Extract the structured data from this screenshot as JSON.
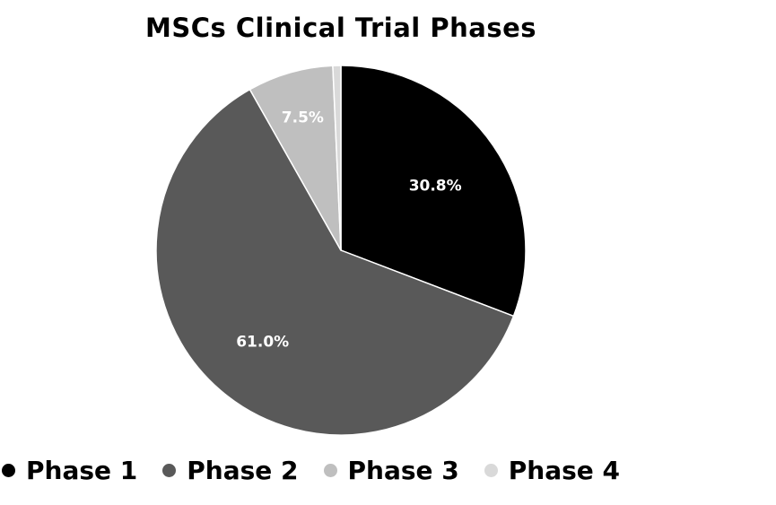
{
  "chart_data": {
    "type": "pie",
    "title": "MSCs Clinical Trial Phases",
    "categories": [
      "Phase 1",
      "Phase 2",
      "Phase 3",
      "Phase 4"
    ],
    "values": [
      30.8,
      61.0,
      7.5,
      0.7
    ],
    "labels": [
      "30.8%",
      "61.0%",
      "7.5%",
      ""
    ],
    "colors": [
      "#000000",
      "#595959",
      "#bfbfbf",
      "#d9d9d9"
    ],
    "legend_position": "bottom"
  }
}
